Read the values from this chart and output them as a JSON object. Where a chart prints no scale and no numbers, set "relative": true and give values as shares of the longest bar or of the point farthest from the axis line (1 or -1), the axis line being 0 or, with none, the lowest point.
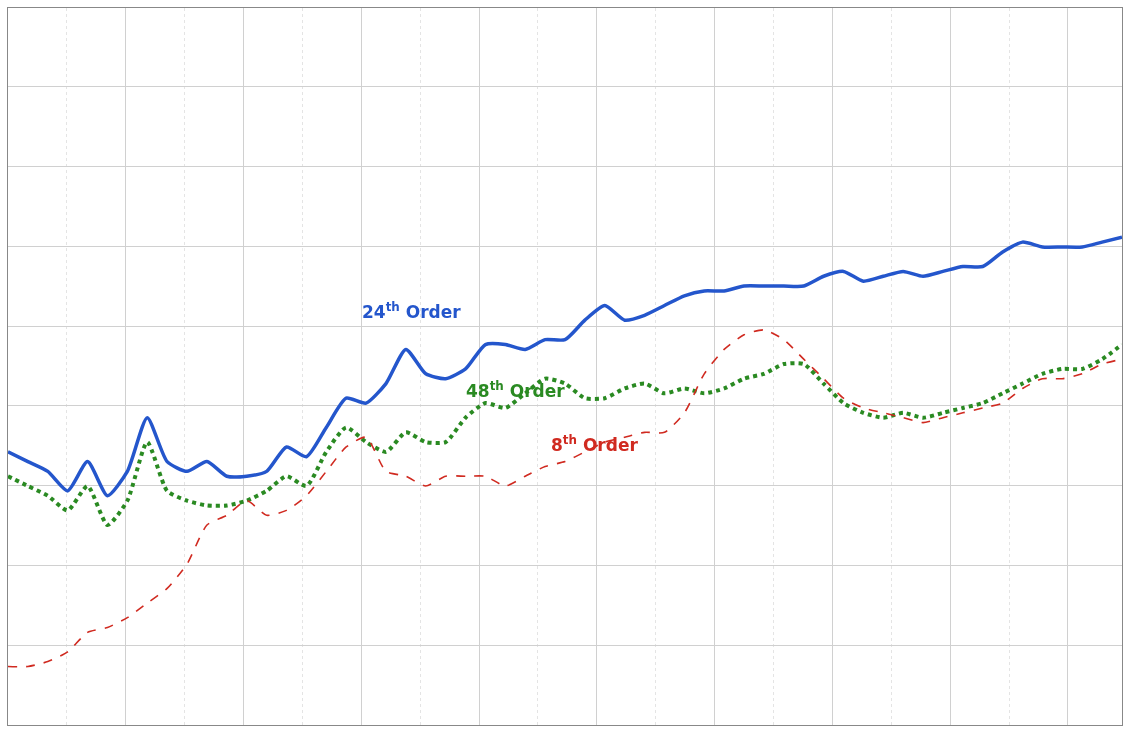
{
  "chart_data": {
    "type": "line",
    "relative": true,
    "grid": true,
    "legend": false,
    "marker": "none",
    "categories": [
      null,
      null,
      null,
      null,
      null,
      null,
      null,
      null,
      null,
      null,
      null,
      null,
      null,
      null,
      null,
      null,
      null,
      null,
      null,
      null,
      null,
      null,
      null,
      null,
      null,
      null,
      null,
      null,
      null,
      null,
      null,
      null,
      null,
      null,
      null,
      null,
      null,
      null,
      null,
      null,
      null,
      null,
      null,
      null,
      null,
      null,
      null,
      null,
      null,
      null,
      null,
      null,
      null,
      null,
      null,
      null,
      null
    ],
    "series": [
      {
        "name": "24$^{th}$ Order",
        "color": "#2456cc",
        "line_style": "solid",
        "values": [
          0.56,
          0.54,
          0.52,
          0.48,
          0.54,
          0.47,
          0.52,
          0.63,
          0.54,
          0.52,
          0.54,
          0.51,
          0.51,
          0.52,
          0.57,
          0.55,
          0.61,
          0.67,
          0.66,
          0.7,
          0.77,
          0.72,
          0.71,
          0.73,
          0.78,
          0.78,
          0.77,
          0.79,
          0.79,
          0.83,
          0.86,
          0.83,
          0.84,
          0.86,
          0.88,
          0.89,
          0.89,
          0.9,
          0.9,
          0.9,
          0.9,
          0.92,
          0.93,
          0.91,
          0.92,
          0.93,
          0.92,
          0.93,
          0.94,
          0.94,
          0.97,
          0.99,
          0.98,
          0.98,
          0.98,
          0.99,
          1
        ]
      },
      {
        "name": "48$^{th}$ Order",
        "color": "#2a8a22",
        "line_style": "dotted",
        "values": [
          0.51,
          0.49,
          0.47,
          0.44,
          0.49,
          0.41,
          0.46,
          0.58,
          0.48,
          0.46,
          0.45,
          0.45,
          0.46,
          0.48,
          0.51,
          0.49,
          0.56,
          0.61,
          0.58,
          0.56,
          0.6,
          0.58,
          0.58,
          0.63,
          0.66,
          0.65,
          0.68,
          0.71,
          0.7,
          0.67,
          0.67,
          0.69,
          0.7,
          0.68,
          0.69,
          0.68,
          0.69,
          0.71,
          0.72,
          0.74,
          0.74,
          0.7,
          0.66,
          0.64,
          0.63,
          0.64,
          0.63,
          0.64,
          0.65,
          0.66,
          0.68,
          0.7,
          0.72,
          0.73,
          0.73,
          0.75,
          0.78
        ]
      },
      {
        "name": "8$^{th}$ Order",
        "color": "#d02a20",
        "line_style": "dashed",
        "values": [
          0.12,
          0.12,
          0.13,
          0.15,
          0.19,
          0.2,
          0.22,
          0.25,
          0.28,
          0.33,
          0.41,
          0.43,
          0.46,
          0.43,
          0.44,
          0.47,
          0.52,
          0.57,
          0.59,
          0.52,
          0.51,
          0.49,
          0.51,
          0.51,
          0.51,
          0.49,
          0.51,
          0.53,
          0.54,
          0.56,
          0.58,
          0.59,
          0.6,
          0.6,
          0.64,
          0.72,
          0.77,
          0.8,
          0.81,
          0.79,
          0.75,
          0.71,
          0.67,
          0.65,
          0.64,
          0.63,
          0.62,
          0.63,
          0.64,
          0.65,
          0.66,
          0.69,
          0.71,
          0.71,
          0.72,
          0.74,
          0.75
        ]
      }
    ]
  }
}
